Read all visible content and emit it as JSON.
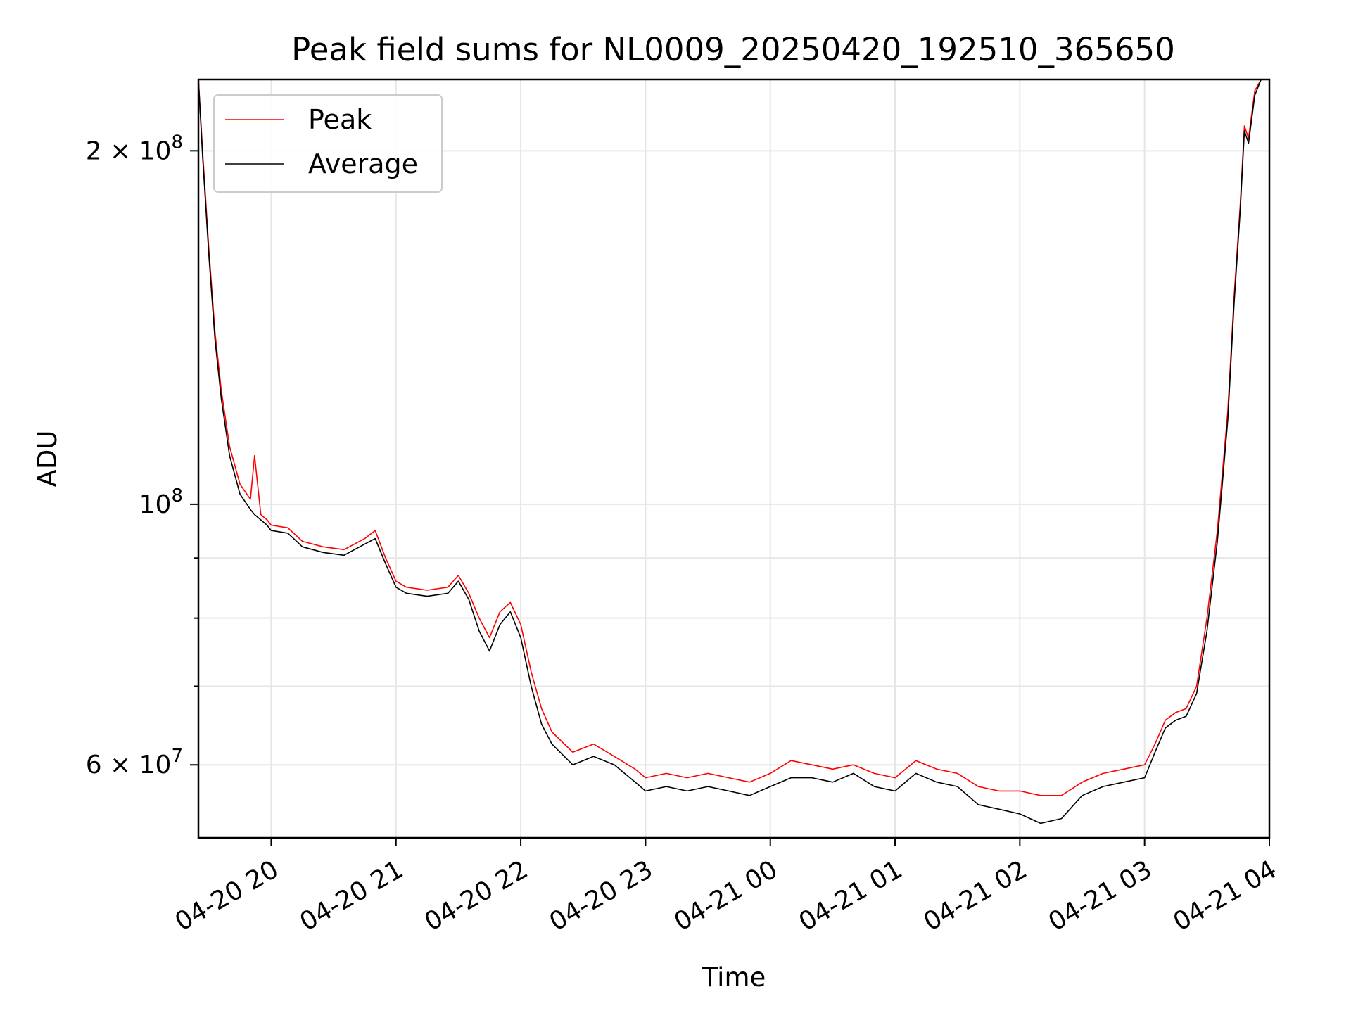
{
  "chart_data": {
    "type": "line",
    "title": "Peak field sums for NL0009_20250420_192510_365650",
    "xlabel": "Time",
    "ylabel": "ADU",
    "yscale": "log",
    "xlim": [
      "2025-04-20 19:25",
      "2025-04-21 04:00"
    ],
    "ylim": [
      52000000,
      230000000
    ],
    "grid": true,
    "legend": {
      "position": "top-left",
      "entries": [
        "Peak",
        "Average"
      ]
    },
    "x_ticks": [
      "04-20 20",
      "04-20 21",
      "04-20 22",
      "04-20 23",
      "04-21 00",
      "04-21 01",
      "04-21 02",
      "04-21 03",
      "04-21 04"
    ],
    "y_ticks": [
      {
        "label": "2 × 10",
        "exp": "8",
        "value": 200000000
      },
      {
        "label": "10",
        "exp": "8",
        "value": 100000000
      },
      {
        "label": "6 × 10",
        "exp": "7",
        "value": 60000000
      }
    ],
    "y_minor_ticks": [
      70000000,
      80000000,
      90000000
    ],
    "series": [
      {
        "name": "Peak",
        "color": "#ff0000",
        "x": [
          "2025-04-20 19:25",
          "2025-04-20 19:27",
          "2025-04-20 19:30",
          "2025-04-20 19:33",
          "2025-04-20 19:36",
          "2025-04-20 19:40",
          "2025-04-20 19:45",
          "2025-04-20 19:50",
          "2025-04-20 19:52",
          "2025-04-20 19:55",
          "2025-04-20 19:58",
          "2025-04-20 20:00",
          "2025-04-20 20:08",
          "2025-04-20 20:15",
          "2025-04-20 20:25",
          "2025-04-20 20:35",
          "2025-04-20 20:45",
          "2025-04-20 20:50",
          "2025-04-20 20:55",
          "2025-04-20 21:00",
          "2025-04-20 21:05",
          "2025-04-20 21:15",
          "2025-04-20 21:25",
          "2025-04-20 21:30",
          "2025-04-20 21:35",
          "2025-04-20 21:40",
          "2025-04-20 21:45",
          "2025-04-20 21:50",
          "2025-04-20 21:55",
          "2025-04-20 22:00",
          "2025-04-20 22:05",
          "2025-04-20 22:10",
          "2025-04-20 22:15",
          "2025-04-20 22:25",
          "2025-04-20 22:35",
          "2025-04-20 22:45",
          "2025-04-20 22:55",
          "2025-04-20 23:00",
          "2025-04-20 23:10",
          "2025-04-20 23:20",
          "2025-04-20 23:30",
          "2025-04-20 23:40",
          "2025-04-20 23:50",
          "2025-04-21 00:00",
          "2025-04-21 00:10",
          "2025-04-21 00:20",
          "2025-04-21 00:30",
          "2025-04-21 00:40",
          "2025-04-21 00:50",
          "2025-04-21 01:00",
          "2025-04-21 01:10",
          "2025-04-21 01:20",
          "2025-04-21 01:30",
          "2025-04-21 01:40",
          "2025-04-21 01:50",
          "2025-04-21 02:00",
          "2025-04-21 02:10",
          "2025-04-21 02:20",
          "2025-04-21 02:30",
          "2025-04-21 02:40",
          "2025-04-21 02:50",
          "2025-04-21 03:00",
          "2025-04-21 03:05",
          "2025-04-21 03:10",
          "2025-04-21 03:15",
          "2025-04-21 03:20",
          "2025-04-21 03:25",
          "2025-04-21 03:30",
          "2025-04-21 03:35",
          "2025-04-21 03:40",
          "2025-04-21 03:43",
          "2025-04-21 03:46",
          "2025-04-21 03:48",
          "2025-04-21 03:50",
          "2025-04-21 03:53",
          "2025-04-21 03:56",
          "2025-04-21 04:00"
        ],
        "values": [
          230000000,
          200000000,
          165000000,
          140000000,
          125000000,
          112000000,
          104000000,
          101000000,
          110000000,
          98000000,
          97000000,
          96000000,
          95500000,
          93000000,
          92000000,
          91500000,
          93500000,
          95000000,
          90000000,
          86000000,
          85000000,
          84500000,
          85000000,
          87000000,
          84000000,
          80000000,
          77000000,
          81000000,
          82500000,
          79000000,
          72000000,
          67000000,
          64000000,
          61500000,
          62500000,
          61000000,
          59500000,
          58500000,
          59000000,
          58500000,
          59000000,
          58500000,
          58000000,
          59000000,
          60500000,
          60000000,
          59500000,
          60000000,
          59000000,
          58500000,
          60500000,
          59500000,
          59000000,
          57500000,
          57000000,
          57000000,
          56500000,
          56500000,
          58000000,
          59000000,
          59500000,
          60000000,
          62500000,
          65500000,
          66500000,
          67000000,
          70000000,
          80000000,
          95000000,
          120000000,
          150000000,
          180000000,
          210000000,
          205000000,
          225000000,
          230000000,
          230000000
        ]
      },
      {
        "name": "Average",
        "color": "#000000",
        "x": [
          "2025-04-20 19:25",
          "2025-04-20 19:27",
          "2025-04-20 19:30",
          "2025-04-20 19:33",
          "2025-04-20 19:36",
          "2025-04-20 19:40",
          "2025-04-20 19:45",
          "2025-04-20 19:50",
          "2025-04-20 19:52",
          "2025-04-20 19:55",
          "2025-04-20 19:58",
          "2025-04-20 20:00",
          "2025-04-20 20:08",
          "2025-04-20 20:15",
          "2025-04-20 20:25",
          "2025-04-20 20:35",
          "2025-04-20 20:45",
          "2025-04-20 20:50",
          "2025-04-20 20:55",
          "2025-04-20 21:00",
          "2025-04-20 21:05",
          "2025-04-20 21:15",
          "2025-04-20 21:25",
          "2025-04-20 21:30",
          "2025-04-20 21:35",
          "2025-04-20 21:40",
          "2025-04-20 21:45",
          "2025-04-20 21:50",
          "2025-04-20 21:55",
          "2025-04-20 22:00",
          "2025-04-20 22:05",
          "2025-04-20 22:10",
          "2025-04-20 22:15",
          "2025-04-20 22:25",
          "2025-04-20 22:35",
          "2025-04-20 22:45",
          "2025-04-20 22:55",
          "2025-04-20 23:00",
          "2025-04-20 23:10",
          "2025-04-20 23:20",
          "2025-04-20 23:30",
          "2025-04-20 23:40",
          "2025-04-20 23:50",
          "2025-04-21 00:00",
          "2025-04-21 00:10",
          "2025-04-21 00:20",
          "2025-04-21 00:30",
          "2025-04-21 00:40",
          "2025-04-21 00:50",
          "2025-04-21 01:00",
          "2025-04-21 01:10",
          "2025-04-21 01:20",
          "2025-04-21 01:30",
          "2025-04-21 01:40",
          "2025-04-21 01:50",
          "2025-04-21 02:00",
          "2025-04-21 02:10",
          "2025-04-21 02:20",
          "2025-04-21 02:30",
          "2025-04-21 02:40",
          "2025-04-21 02:50",
          "2025-04-21 03:00",
          "2025-04-21 03:05",
          "2025-04-21 03:10",
          "2025-04-21 03:15",
          "2025-04-21 03:20",
          "2025-04-21 03:25",
          "2025-04-21 03:30",
          "2025-04-21 03:35",
          "2025-04-21 03:40",
          "2025-04-21 03:43",
          "2025-04-21 03:46",
          "2025-04-21 03:48",
          "2025-04-21 03:50",
          "2025-04-21 03:53",
          "2025-04-21 03:56",
          "2025-04-21 04:00"
        ],
        "values": [
          230000000,
          198000000,
          163000000,
          138000000,
          123000000,
          110000000,
          102000000,
          99000000,
          98000000,
          97000000,
          96000000,
          95000000,
          94500000,
          92000000,
          91000000,
          90500000,
          92500000,
          93500000,
          89000000,
          85000000,
          84000000,
          83500000,
          84000000,
          86000000,
          83000000,
          78000000,
          75000000,
          79000000,
          81000000,
          77000000,
          70000000,
          65000000,
          62500000,
          60000000,
          61000000,
          60000000,
          58000000,
          57000000,
          57500000,
          57000000,
          57500000,
          57000000,
          56500000,
          57500000,
          58500000,
          58500000,
          58000000,
          59000000,
          57500000,
          57000000,
          59000000,
          58000000,
          57500000,
          55500000,
          55000000,
          54500000,
          53500000,
          54000000,
          56500000,
          57500000,
          58000000,
          58500000,
          61500000,
          64500000,
          65500000,
          66000000,
          69000000,
          78000000,
          93000000,
          118000000,
          148000000,
          178000000,
          208000000,
          203000000,
          223000000,
          230000000,
          230000000
        ]
      }
    ]
  }
}
